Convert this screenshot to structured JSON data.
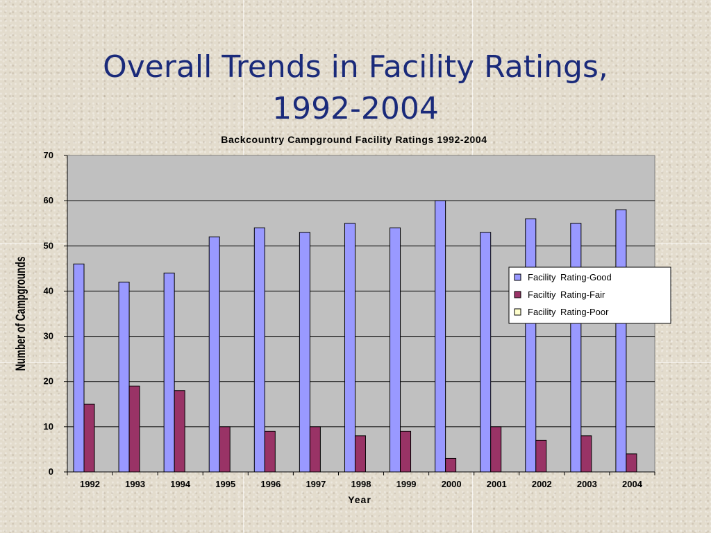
{
  "slide": {
    "title_line1": "Overall Trends in Facility Ratings,",
    "title_line2": "1992-2004"
  },
  "chart_data": {
    "type": "bar",
    "title": "Backcountry Campground Facility Ratings 1992-2004",
    "xlabel": "Year",
    "ylabel": "Number of Campgrounds",
    "ylim": [
      0,
      70
    ],
    "yticks": [
      0,
      10,
      20,
      30,
      40,
      50,
      60,
      70
    ],
    "grid": true,
    "legend_position": "right",
    "categories": [
      "1992",
      "1993",
      "1994",
      "1995",
      "1996",
      "1997",
      "1998",
      "1999",
      "2000",
      "2001",
      "2002",
      "2003",
      "2004"
    ],
    "series": [
      {
        "name": "Facility Rating-Good",
        "color": "#9999ff",
        "values": [
          46,
          42,
          44,
          52,
          54,
          53,
          55,
          54,
          60,
          53,
          56,
          55,
          58
        ]
      },
      {
        "name": "Faciltiy Rating-Fair",
        "color": "#993366",
        "values": [
          15,
          19,
          18,
          10,
          9,
          10,
          8,
          9,
          3,
          10,
          7,
          8,
          4
        ]
      },
      {
        "name": "Facility Rating-Poor",
        "color": "#ffffcc",
        "values": [
          0,
          0,
          0,
          0,
          0,
          0,
          0,
          0,
          0,
          0,
          0,
          0,
          0
        ]
      }
    ]
  }
}
